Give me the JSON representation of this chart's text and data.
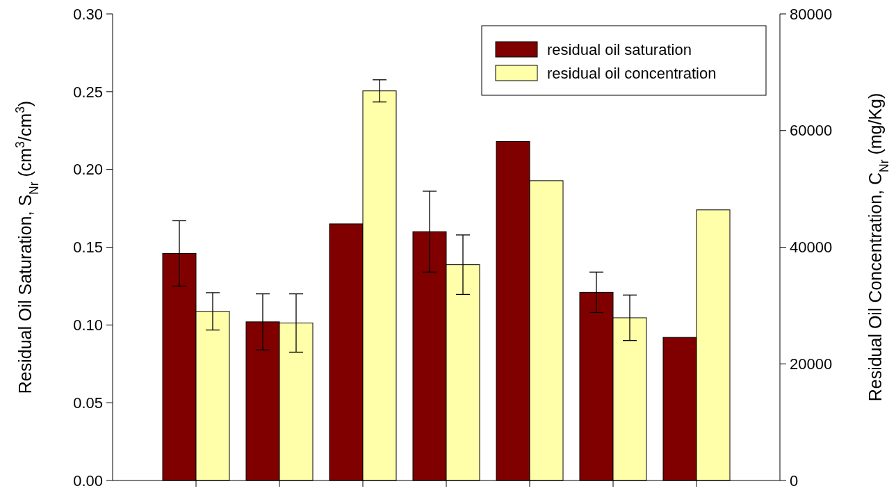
{
  "chart_data": {
    "type": "bar",
    "ylabel": "Residual Oil Saturation, S$_{Nr}$ (cm$^{3}$/cm$^{3}$)",
    "y2label": "Residual Oil Concentration, C$_{Nr}$ (mg/Kg)",
    "categories": [
      null,
      null,
      null,
      null,
      null,
      null,
      null
    ],
    "series": [
      {
        "name": "residual oil saturation",
        "color": "#800000",
        "values": [
          0.146,
          0.102,
          0.165,
          0.16,
          0.218,
          0.121,
          0.092
        ],
        "errors": [
          0.021,
          0.018,
          null,
          0.026,
          null,
          0.013,
          null
        ]
      },
      {
        "name": "residual oil concentration",
        "color": "#ffffaa",
        "axis": "y2",
        "values": [
          29000,
          27000,
          66800,
          37000,
          51400,
          27900,
          46400
        ],
        "errors": [
          3200,
          5000,
          1900,
          5100,
          null,
          3900,
          null
        ]
      }
    ],
    "ylim": [
      0,
      0.3
    ],
    "yticks": [
      {
        "value": 0,
        "label": "0.00"
      },
      {
        "value": 0.05,
        "label": "0.05"
      },
      {
        "value": 0.1,
        "label": "0.10"
      },
      {
        "value": 0.15,
        "label": "0.15"
      },
      {
        "value": 0.2,
        "label": "0.20"
      },
      {
        "value": 0.25,
        "label": "0.25"
      },
      {
        "value": 0.3,
        "label": "0.30"
      }
    ],
    "y2lim": [
      0,
      80000
    ],
    "y2ticks": [
      0,
      20000,
      40000,
      60000,
      80000
    ],
    "legend": "top right",
    "grid": false
  }
}
